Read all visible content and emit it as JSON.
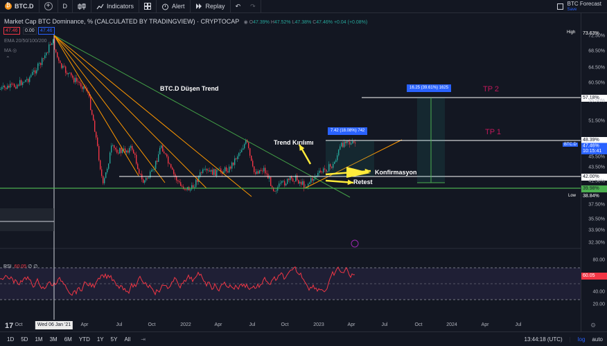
{
  "toolbar": {
    "symbol": "BTC.D",
    "interval": "D",
    "indicators_label": "Indicators",
    "alert_label": "Alert",
    "replay_label": "Replay",
    "layout_name": "BTC Forecast",
    "layout_status": "Save"
  },
  "legend": {
    "title": "Market Cap BTC Dominance, % (CALCULATED BY TRADINGVIEW) · CRYPTOCAP",
    "o_label": "O",
    "o": "47.39%",
    "h_label": "H",
    "h": "47.52%",
    "l_label": "L",
    "l": "47.38%",
    "c_label": "C",
    "c": "47.46%",
    "change": "+0.04 (+0.08%)",
    "bid": "47.46",
    "spread": "0.00",
    "ask": "47.46",
    "ema": "EMA 20/50/100/200",
    "ma": "MA"
  },
  "rsi": {
    "label": "RSI",
    "value": "60.05",
    "extra": "∅ ∅"
  },
  "annotations": {
    "trend": "BTC.D Düşen Trend",
    "breakout": "Trend Kırılımı",
    "confirm": "Konfirmasyon",
    "retest": "Retest",
    "tp1": "TP 1",
    "tp2": "TP 2",
    "measure1": "7.42 (18.08%) 742",
    "measure2": "16.25 (39.61%) 1625"
  },
  "price_scale": {
    "ticks": [
      "72.50%",
      "68.50%",
      "64.50%",
      "60.50%",
      "55.50%",
      "51.50%",
      "45.50%",
      "43.50%",
      "41.50%",
      "37.50%",
      "35.50%",
      "33.90%",
      "32.30%"
    ],
    "high_label": "High",
    "high": "73.63%",
    "tp2": "57.18%",
    "tp1": "48.39%",
    "symbol_tag": "BTC.D",
    "current": "47.46%",
    "countdown": "10:15:41",
    "support": "42.00%",
    "base": "39.98%",
    "low_label": "Low",
    "low": "38.84%",
    "rsi_ticks": [
      "80.00",
      "40.00",
      "20.00"
    ],
    "rsi_current": "60.05"
  },
  "time_axis": {
    "labels": [
      "Oct",
      "Apr",
      "Jul",
      "Oct",
      "2022",
      "Apr",
      "Jul",
      "Oct",
      "2023",
      "Apr",
      "Jul",
      "Oct",
      "2024",
      "Apr",
      "Jul"
    ],
    "crosshair": "Wed 06 Jan '21"
  },
  "bottom": {
    "ranges": [
      "1D",
      "5D",
      "1M",
      "3M",
      "6M",
      "YTD",
      "1Y",
      "5Y",
      "All"
    ],
    "clock": "13:44:18 (UTC)",
    "log": "log",
    "auto": "auto"
  },
  "colors": {
    "up": "#26a69a",
    "down": "#f23645",
    "accent": "#2962ff",
    "trend_green": "#43a047",
    "fib_orange": "#ff9800",
    "yellow": "#ffeb3b",
    "tp": "#c2185b"
  }
}
